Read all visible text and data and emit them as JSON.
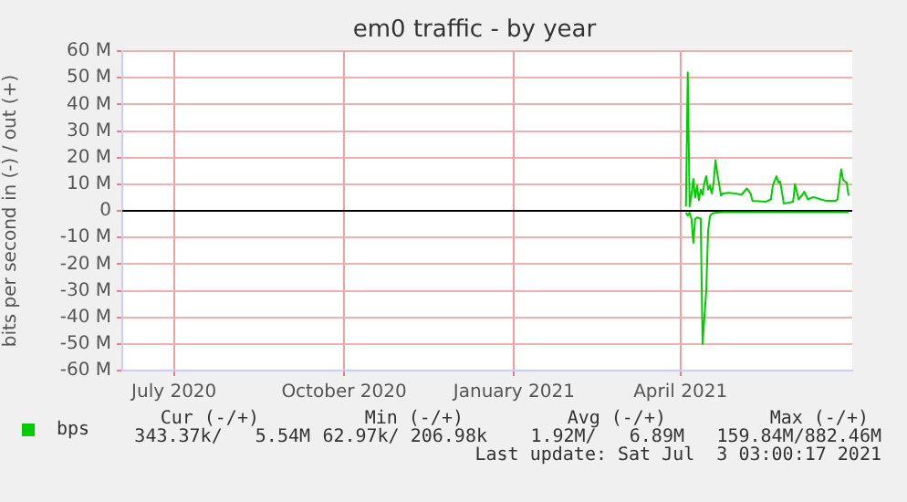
{
  "chart_data": {
    "type": "line",
    "title": "em0 traffic - by year",
    "ylabel": "bits per second in (-) / out (+)",
    "xlim": [
      "2020-06-03",
      "2021-07-03"
    ],
    "xticks": [
      {
        "value": "2020-07-01",
        "label": "July 2020"
      },
      {
        "value": "2020-10-01",
        "label": "October 2020"
      },
      {
        "value": "2021-01-01",
        "label": "January 2021"
      },
      {
        "value": "2021-04-01",
        "label": "April 2021"
      }
    ],
    "ylim": [
      -60,
      60
    ],
    "yticks": [
      {
        "value": -60,
        "label": "-60 M"
      },
      {
        "value": -50,
        "label": "-50 M"
      },
      {
        "value": -40,
        "label": "-40 M"
      },
      {
        "value": -30,
        "label": "-30 M"
      },
      {
        "value": -20,
        "label": "-20 M"
      },
      {
        "value": -10,
        "label": "-10 M"
      },
      {
        "value": 0,
        "label": "0"
      },
      {
        "value": 10,
        "label": "10 M"
      },
      {
        "value": 20,
        "label": "20 M"
      },
      {
        "value": 30,
        "label": "30 M"
      },
      {
        "value": 40,
        "label": "40 M"
      },
      {
        "value": 50,
        "label": "50 M"
      },
      {
        "value": 60,
        "label": "60 M"
      }
    ],
    "grid": true,
    "legend": "bottom left",
    "marker": "none",
    "line_style": "solid",
    "ref_lines": [
      {
        "axis": "y",
        "value": 0,
        "color": "#000000"
      }
    ],
    "series": [
      {
        "name": "bps",
        "color": "#00cc00",
        "x": [
          "2021-04-04",
          "2021-04-05",
          "2021-04-06",
          "2021-04-07",
          "2021-04-08",
          "2021-04-09",
          "2021-04-10",
          "2021-04-11",
          "2021-04-12",
          "2021-04-13",
          "2021-04-14",
          "2021-04-15",
          "2021-04-16",
          "2021-04-17",
          "2021-04-18",
          "2021-04-19",
          "2021-04-20",
          "2021-04-21",
          "2021-04-23",
          "2021-04-24",
          "2021-04-27",
          "2021-05-01",
          "2021-05-04",
          "2021-05-07",
          "2021-05-09",
          "2021-05-10",
          "2021-05-17",
          "2021-05-20",
          "2021-05-21",
          "2021-05-23",
          "2021-05-24",
          "2021-05-25",
          "2021-05-27",
          "2021-06-01",
          "2021-06-02",
          "2021-06-04",
          "2021-06-06",
          "2021-06-07",
          "2021-06-09",
          "2021-06-12",
          "2021-06-16",
          "2021-06-19",
          "2021-06-24",
          "2021-06-25",
          "2021-06-27",
          "2021-06-28",
          "2021-06-29",
          "2021-06-30",
          "2021-07-01"
        ],
        "values": [
          1.6,
          52,
          1.6,
          6,
          12,
          5,
          9.5,
          4,
          8,
          6,
          10.6,
          13,
          8,
          9.5,
          6.5,
          10.6,
          19,
          14,
          5.7,
          6.5,
          6.8,
          6.5,
          6,
          8.4,
          6.5,
          3.8,
          3.4,
          4.3,
          9.5,
          13,
          10.6,
          11,
          2.7,
          3.4,
          10,
          4.3,
          6,
          7.2,
          4.3,
          5.2,
          4.3,
          3.8,
          3.8,
          4.3,
          15.6,
          11.8,
          11,
          10.6,
          5.7
        ]
      },
      {
        "color": "#00cc00",
        "x": [
          "2021-04-04",
          "2021-04-05",
          "2021-04-06",
          "2021-04-07",
          "2021-04-08",
          "2021-04-09",
          "2021-04-10",
          "2021-04-12",
          "2021-04-13",
          "2021-04-15",
          "2021-04-16",
          "2021-04-17",
          "2021-04-18",
          "2021-04-20",
          "2021-04-24",
          "2021-05-10",
          "2021-06-01",
          "2021-06-20",
          "2021-07-01"
        ],
        "values": [
          -0.7,
          -1.8,
          -0.7,
          -3,
          -12,
          -3,
          -2.5,
          -3,
          -50,
          -30,
          -7.5,
          -2,
          -1.1,
          -0.7,
          -0.5,
          -0.5,
          -0.5,
          -0.5,
          -0.5
        ]
      }
    ],
    "annotations": [
      "Cur (-/+)",
      "Min (-/+)",
      "Avg (-/+)",
      "Max (-/+)",
      "343.37k/   5.54M",
      "62.97k/ 206.98k",
      "1.92M/   6.89M",
      "159.84M/882.46M",
      "Last update: Sat Jul  3 03:00:17 2021"
    ]
  }
}
